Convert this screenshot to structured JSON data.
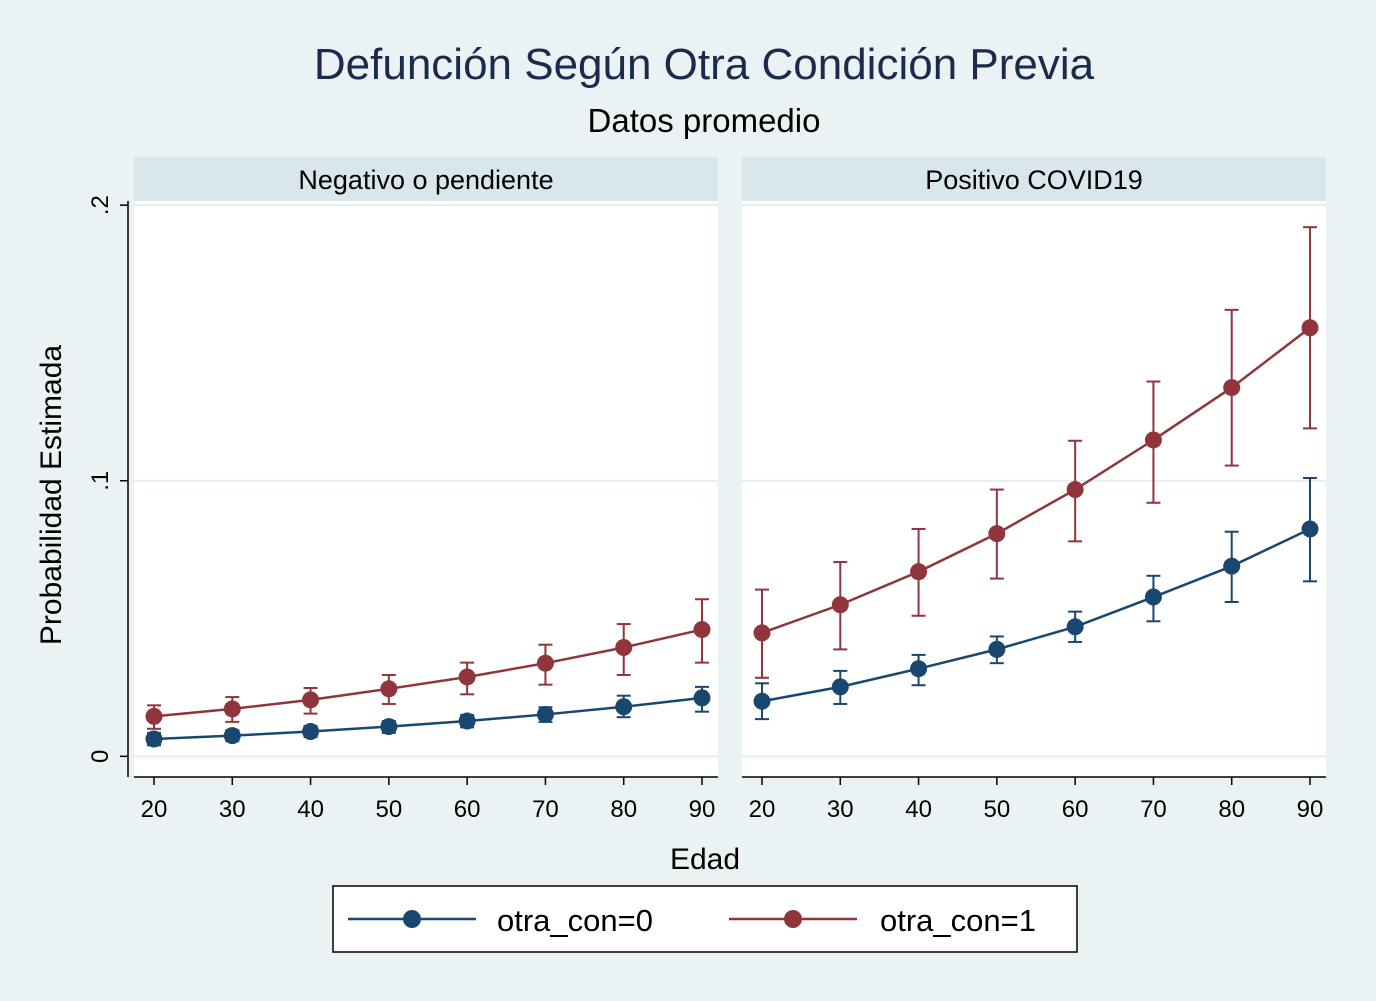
{
  "chart_data": {
    "type": "line",
    "title": "Defunción Según Otra Condición Previa",
    "subtitle": "Datos promedio",
    "xlabel": "Edad",
    "ylabel": "Probabilidad Estimada",
    "x_ticks": [
      20,
      30,
      40,
      50,
      60,
      70,
      80,
      90
    ],
    "y_ticks": [
      {
        "value": 0,
        "label": "0"
      },
      {
        "value": 0.1,
        "label": ".1"
      },
      {
        "value": 0.2,
        "label": ".2"
      }
    ],
    "ylim": [
      -0.0075,
      0.2015
    ],
    "xlim": [
      17.5,
      92.5
    ],
    "grid": true,
    "legend_position": "bottom",
    "colors": {
      "background": "#eaf2f3",
      "plot_bg": "#ffffff",
      "strip_bg": "#d9e6eb",
      "series0": "#1a476f",
      "series1": "#90353b",
      "title": "#1a2b4c"
    },
    "panels": [
      {
        "title": "Negativo o pendiente",
        "series": [
          {
            "name": "otra_con=0",
            "x": [
              20,
              30,
              40,
              50,
              60,
              70,
              80,
              90
            ],
            "y": [
              0.0063,
              0.0075,
              0.009,
              0.0108,
              0.0128,
              0.0152,
              0.018,
              0.0212
            ],
            "ci_low": [
              0.004,
              0.0055,
              0.007,
              0.0085,
              0.0105,
              0.0125,
              0.0142,
              0.0162
            ],
            "ci_high": [
              0.0085,
              0.0095,
              0.011,
              0.0128,
              0.015,
              0.0178,
              0.022,
              0.0252
            ]
          },
          {
            "name": "otra_con=1",
            "x": [
              20,
              30,
              40,
              50,
              60,
              70,
              80,
              90
            ],
            "y": [
              0.0145,
              0.0172,
              0.0205,
              0.0245,
              0.0288,
              0.0338,
              0.0395,
              0.046
            ],
            "ci_low": [
              0.01,
              0.0125,
              0.0155,
              0.019,
              0.0225,
              0.026,
              0.0295,
              0.034
            ],
            "ci_high": [
              0.0185,
              0.0215,
              0.0248,
              0.0295,
              0.034,
              0.0405,
              0.048,
              0.057
            ]
          }
        ]
      },
      {
        "title": "Positivo COVID19",
        "series": [
          {
            "name": "otra_con=0",
            "x": [
              20,
              30,
              40,
              50,
              60,
              70,
              80,
              90
            ],
            "y": [
              0.02,
              0.0252,
              0.0318,
              0.0388,
              0.047,
              0.0578,
              0.069,
              0.0825
            ],
            "ci_low": [
              0.0135,
              0.019,
              0.0258,
              0.0338,
              0.0415,
              0.049,
              0.056,
              0.0635
            ],
            "ci_high": [
              0.0265,
              0.031,
              0.0368,
              0.0435,
              0.0525,
              0.0655,
              0.0815,
              0.101
            ]
          },
          {
            "name": "otra_con=1",
            "x": [
              20,
              30,
              40,
              50,
              60,
              70,
              80,
              90
            ],
            "y": [
              0.0448,
              0.055,
              0.067,
              0.0808,
              0.0968,
              0.1148,
              0.1338,
              0.1555
            ],
            "ci_low": [
              0.0285,
              0.0388,
              0.051,
              0.0645,
              0.078,
              0.092,
              0.1055,
              0.119
            ],
            "ci_high": [
              0.0605,
              0.0705,
              0.0825,
              0.0968,
              0.1145,
              0.136,
              0.162,
              0.192
            ]
          }
        ]
      }
    ],
    "legend": [
      {
        "label": "otra_con=0",
        "series": 0
      },
      {
        "label": "otra_con=1",
        "series": 1
      }
    ]
  }
}
